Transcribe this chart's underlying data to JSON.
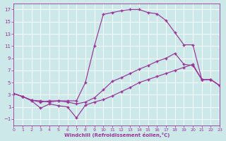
{
  "xlabel": "Windchill (Refroidissement éolien,°C)",
  "bg_color": "#cce8e8",
  "line_color": "#993399",
  "grid_color": "#aadddd",
  "xlim": [
    0,
    23
  ],
  "ylim": [
    -2,
    18
  ],
  "yticks": [
    -1,
    1,
    3,
    5,
    7,
    9,
    11,
    13,
    15,
    17
  ],
  "xticks": [
    0,
    1,
    2,
    3,
    4,
    5,
    6,
    7,
    8,
    9,
    10,
    11,
    12,
    13,
    14,
    15,
    16,
    17,
    18,
    19,
    20,
    21,
    22,
    23
  ],
  "line_top_x": [
    0,
    1,
    2,
    3,
    4,
    5,
    6,
    7,
    8,
    9,
    10,
    11,
    12,
    13,
    14,
    15,
    16,
    17,
    18,
    19,
    20,
    21,
    22,
    23
  ],
  "line_top_y": [
    3.2,
    2.7,
    2.1,
    2.0,
    1.8,
    2.0,
    2.0,
    2.0,
    5.0,
    11.0,
    16.2,
    16.5,
    16.8,
    17.0,
    17.0,
    16.5,
    16.3,
    15.2,
    13.2,
    11.2,
    11.2,
    5.5,
    5.5,
    4.5
  ],
  "line_mid_x": [
    0,
    1,
    2,
    3,
    4,
    5,
    6,
    7,
    8,
    9,
    10,
    11,
    12,
    13,
    14,
    15,
    16,
    17,
    18,
    19,
    20,
    21,
    22,
    23
  ],
  "line_mid_y": [
    3.2,
    2.7,
    2.1,
    1.8,
    2.0,
    2.0,
    1.8,
    1.5,
    1.8,
    2.5,
    3.8,
    5.2,
    5.8,
    6.5,
    7.2,
    7.8,
    8.5,
    9.0,
    9.8,
    8.0,
    7.8,
    5.5,
    5.5,
    4.5
  ],
  "line_bot_x": [
    0,
    1,
    2,
    3,
    4,
    5,
    6,
    7,
    8,
    9,
    10,
    11,
    12,
    13,
    14,
    15,
    16,
    17,
    18,
    19,
    20,
    21,
    22,
    23
  ],
  "line_bot_y": [
    3.2,
    2.7,
    2.0,
    0.8,
    1.5,
    1.2,
    1.0,
    -0.8,
    1.3,
    1.8,
    2.2,
    2.8,
    3.5,
    4.2,
    5.0,
    5.5,
    6.0,
    6.5,
    7.0,
    7.5,
    8.0,
    5.5,
    5.5,
    4.5
  ]
}
